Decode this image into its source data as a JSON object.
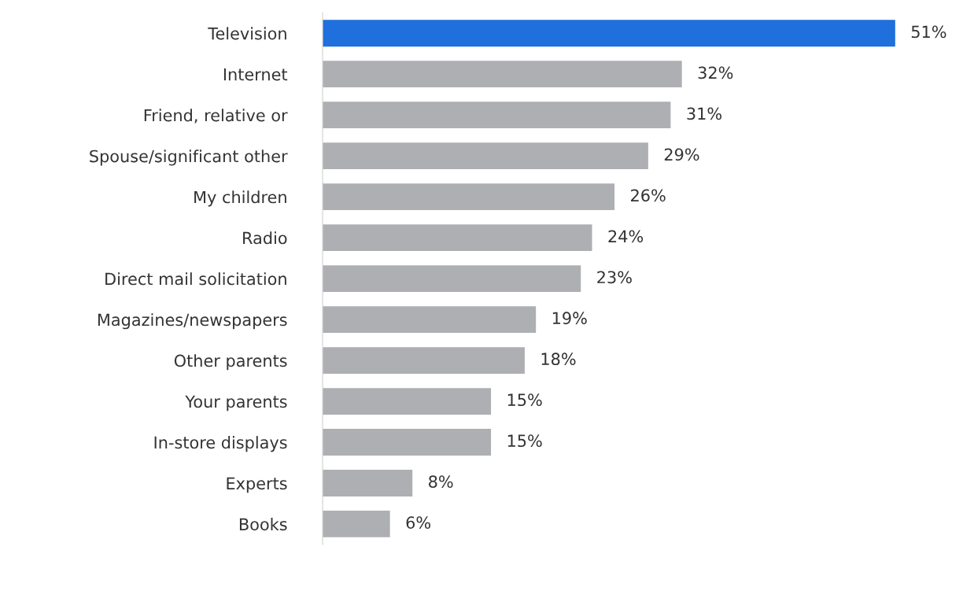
{
  "chart_data": {
    "type": "bar",
    "orientation": "horizontal",
    "categories": [
      "Television",
      "Internet",
      "Friend, relative or",
      "Spouse/significant other",
      "My children",
      "Radio",
      "Direct mail solicitation",
      "Magazines/newspapers",
      "Other parents",
      "Your parents",
      "In-store displays",
      "Experts",
      "Books"
    ],
    "values": [
      51,
      32,
      31,
      29,
      26,
      24,
      23,
      19,
      18,
      15,
      15,
      8,
      6
    ],
    "colors": [
      "#1f6fdc",
      "#aeafb3",
      "#aeafb3",
      "#aeafb3",
      "#aeafb3",
      "#aeafb3",
      "#aeafb3",
      "#aeafb3",
      "#aeafb3",
      "#aeafb3",
      "#aeafb3",
      "#aeafb3",
      "#aeafb3"
    ],
    "value_labels": [
      "51%",
      "32%",
      "31%",
      "29%",
      "26%",
      "24%",
      "23%",
      "19%",
      "18%",
      "15%",
      "15%",
      "8%",
      "6%"
    ],
    "grid": false,
    "legend": false
  }
}
